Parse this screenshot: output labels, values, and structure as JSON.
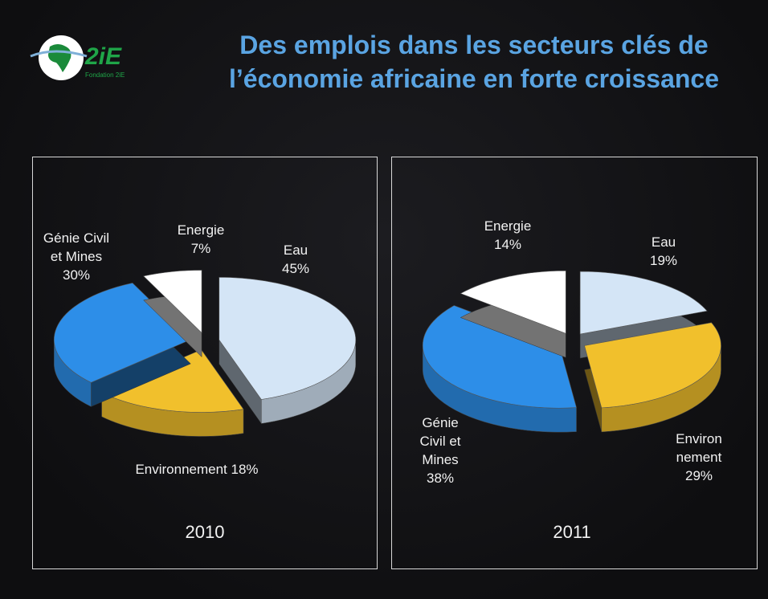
{
  "title": [
    "Des emplois dans les secteurs clés de",
    "l’économie africaine en forte croissance"
  ],
  "logo": {
    "text": "2iE",
    "subtitle": "Fondation 2iE"
  },
  "chart_data": [
    {
      "type": "pie",
      "title": "2010",
      "categories": [
        "Eau",
        "Environnement",
        "Génie Civil et Mines",
        "Energie"
      ],
      "values": [
        45,
        18,
        30,
        7
      ],
      "value_labels": [
        "45%",
        "18%",
        "30%",
        "7%"
      ],
      "colors": [
        "#d4e5f6",
        "#f1c02c",
        "#2d8ee8",
        "#ffffff"
      ]
    },
    {
      "type": "pie",
      "title": "2011",
      "categories": [
        "Eau",
        "Environ nement",
        "Génie Civil et Mines",
        "Energie"
      ],
      "values": [
        19,
        29,
        38,
        14
      ],
      "value_labels": [
        "19%",
        "29%",
        "38%",
        "14%"
      ],
      "colors": [
        "#d4e5f6",
        "#f1c02c",
        "#2d8ee8",
        "#ffffff"
      ]
    }
  ]
}
